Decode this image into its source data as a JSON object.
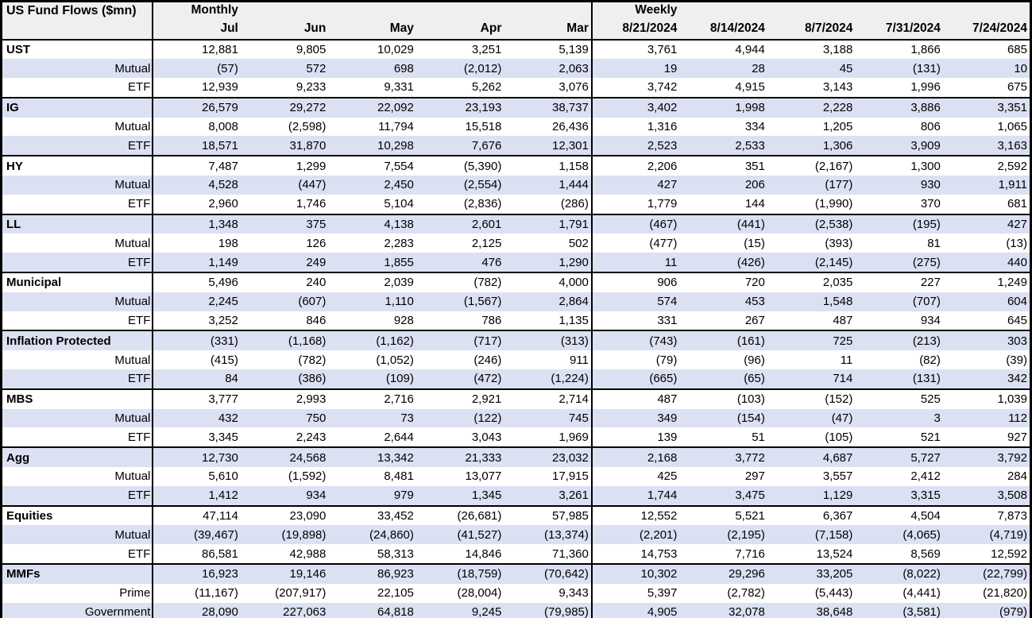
{
  "colors": {
    "alt_row_bg": "#dbe1f3",
    "header_bg": "#efefef",
    "border": "#000000",
    "text": "#000000",
    "row_bg": "#ffffff"
  },
  "chart_data": {
    "type": "table",
    "title": "US Fund Flows ($mn)",
    "sections": [
      {
        "label": "Monthly",
        "columns": [
          "Jul",
          "Jun",
          "May",
          "Apr",
          "Mar"
        ]
      },
      {
        "label": "Weekly",
        "columns": [
          "8/21/2024",
          "8/14/2024",
          "8/7/2024",
          "7/31/2024",
          "7/24/2024"
        ]
      }
    ],
    "groups": [
      {
        "rows": [
          {
            "label": "UST",
            "category": true,
            "monthly": [
              "12,881",
              "9,805",
              "10,029",
              "3,251",
              "5,139"
            ],
            "weekly": [
              "3,761",
              "4,944",
              "3,188",
              "1,866",
              "685"
            ]
          },
          {
            "label": "Mutual",
            "category": false,
            "monthly": [
              "(57)",
              "572",
              "698",
              "(2,012)",
              "2,063"
            ],
            "weekly": [
              "19",
              "28",
              "45",
              "(131)",
              "10"
            ]
          },
          {
            "label": "ETF",
            "category": false,
            "monthly": [
              "12,939",
              "9,233",
              "9,331",
              "5,262",
              "3,076"
            ],
            "weekly": [
              "3,742",
              "4,915",
              "3,143",
              "1,996",
              "675"
            ]
          }
        ]
      },
      {
        "rows": [
          {
            "label": "IG",
            "category": true,
            "monthly": [
              "26,579",
              "29,272",
              "22,092",
              "23,193",
              "38,737"
            ],
            "weekly": [
              "3,402",
              "1,998",
              "2,228",
              "3,886",
              "3,351"
            ]
          },
          {
            "label": "Mutual",
            "category": false,
            "monthly": [
              "8,008",
              "(2,598)",
              "11,794",
              "15,518",
              "26,436"
            ],
            "weekly": [
              "1,316",
              "334",
              "1,205",
              "806",
              "1,065"
            ]
          },
          {
            "label": "ETF",
            "category": false,
            "monthly": [
              "18,571",
              "31,870",
              "10,298",
              "7,676",
              "12,301"
            ],
            "weekly": [
              "2,523",
              "2,533",
              "1,306",
              "3,909",
              "3,163"
            ]
          }
        ]
      },
      {
        "rows": [
          {
            "label": "HY",
            "category": true,
            "monthly": [
              "7,487",
              "1,299",
              "7,554",
              "(5,390)",
              "1,158"
            ],
            "weekly": [
              "2,206",
              "351",
              "(2,167)",
              "1,300",
              "2,592"
            ]
          },
          {
            "label": "Mutual",
            "category": false,
            "monthly": [
              "4,528",
              "(447)",
              "2,450",
              "(2,554)",
              "1,444"
            ],
            "weekly": [
              "427",
              "206",
              "(177)",
              "930",
              "1,911"
            ]
          },
          {
            "label": "ETF",
            "category": false,
            "monthly": [
              "2,960",
              "1,746",
              "5,104",
              "(2,836)",
              "(286)"
            ],
            "weekly": [
              "1,779",
              "144",
              "(1,990)",
              "370",
              "681"
            ]
          }
        ]
      },
      {
        "rows": [
          {
            "label": "LL",
            "category": true,
            "monthly": [
              "1,348",
              "375",
              "4,138",
              "2,601",
              "1,791"
            ],
            "weekly": [
              "(467)",
              "(441)",
              "(2,538)",
              "(195)",
              "427"
            ]
          },
          {
            "label": "Mutual",
            "category": false,
            "monthly": [
              "198",
              "126",
              "2,283",
              "2,125",
              "502"
            ],
            "weekly": [
              "(477)",
              "(15)",
              "(393)",
              "81",
              "(13)"
            ]
          },
          {
            "label": "ETF",
            "category": false,
            "monthly": [
              "1,149",
              "249",
              "1,855",
              "476",
              "1,290"
            ],
            "weekly": [
              "11",
              "(426)",
              "(2,145)",
              "(275)",
              "440"
            ]
          }
        ]
      },
      {
        "rows": [
          {
            "label": "Municipal",
            "category": true,
            "monthly": [
              "5,496",
              "240",
              "2,039",
              "(782)",
              "4,000"
            ],
            "weekly": [
              "906",
              "720",
              "2,035",
              "227",
              "1,249"
            ]
          },
          {
            "label": "Mutual",
            "category": false,
            "monthly": [
              "2,245",
              "(607)",
              "1,110",
              "(1,567)",
              "2,864"
            ],
            "weekly": [
              "574",
              "453",
              "1,548",
              "(707)",
              "604"
            ]
          },
          {
            "label": "ETF",
            "category": false,
            "monthly": [
              "3,252",
              "846",
              "928",
              "786",
              "1,135"
            ],
            "weekly": [
              "331",
              "267",
              "487",
              "934",
              "645"
            ]
          }
        ]
      },
      {
        "rows": [
          {
            "label": "Inflation Protected",
            "category": true,
            "monthly": [
              "(331)",
              "(1,168)",
              "(1,162)",
              "(717)",
              "(313)"
            ],
            "weekly": [
              "(743)",
              "(161)",
              "725",
              "(213)",
              "303"
            ]
          },
          {
            "label": "Mutual",
            "category": false,
            "monthly": [
              "(415)",
              "(782)",
              "(1,052)",
              "(246)",
              "911"
            ],
            "weekly": [
              "(79)",
              "(96)",
              "11",
              "(82)",
              "(39)"
            ]
          },
          {
            "label": "ETF",
            "category": false,
            "monthly": [
              "84",
              "(386)",
              "(109)",
              "(472)",
              "(1,224)"
            ],
            "weekly": [
              "(665)",
              "(65)",
              "714",
              "(131)",
              "342"
            ]
          }
        ]
      },
      {
        "rows": [
          {
            "label": "MBS",
            "category": true,
            "monthly": [
              "3,777",
              "2,993",
              "2,716",
              "2,921",
              "2,714"
            ],
            "weekly": [
              "487",
              "(103)",
              "(152)",
              "525",
              "1,039"
            ]
          },
          {
            "label": "Mutual",
            "category": false,
            "monthly": [
              "432",
              "750",
              "73",
              "(122)",
              "745"
            ],
            "weekly": [
              "349",
              "(154)",
              "(47)",
              "3",
              "112"
            ]
          },
          {
            "label": "ETF",
            "category": false,
            "monthly": [
              "3,345",
              "2,243",
              "2,644",
              "3,043",
              "1,969"
            ],
            "weekly": [
              "139",
              "51",
              "(105)",
              "521",
              "927"
            ]
          }
        ]
      },
      {
        "rows": [
          {
            "label": "Agg",
            "category": true,
            "monthly": [
              "12,730",
              "24,568",
              "13,342",
              "21,333",
              "23,032"
            ],
            "weekly": [
              "2,168",
              "3,772",
              "4,687",
              "5,727",
              "3,792"
            ]
          },
          {
            "label": "Mutual",
            "category": false,
            "monthly": [
              "5,610",
              "(1,592)",
              "8,481",
              "13,077",
              "17,915"
            ],
            "weekly": [
              "425",
              "297",
              "3,557",
              "2,412",
              "284"
            ]
          },
          {
            "label": "ETF",
            "category": false,
            "monthly": [
              "1,412",
              "934",
              "979",
              "1,345",
              "3,261"
            ],
            "weekly": [
              "1,744",
              "3,475",
              "1,129",
              "3,315",
              "3,508"
            ]
          }
        ]
      },
      {
        "rows": [
          {
            "label": "Equities",
            "category": true,
            "monthly": [
              "47,114",
              "23,090",
              "33,452",
              "(26,681)",
              "57,985"
            ],
            "weekly": [
              "12,552",
              "5,521",
              "6,367",
              "4,504",
              "7,873"
            ]
          },
          {
            "label": "Mutual",
            "category": false,
            "monthly": [
              "(39,467)",
              "(19,898)",
              "(24,860)",
              "(41,527)",
              "(13,374)"
            ],
            "weekly": [
              "(2,201)",
              "(2,195)",
              "(7,158)",
              "(4,065)",
              "(4,719)"
            ]
          },
          {
            "label": "ETF",
            "category": false,
            "monthly": [
              "86,581",
              "42,988",
              "58,313",
              "14,846",
              "71,360"
            ],
            "weekly": [
              "14,753",
              "7,716",
              "13,524",
              "8,569",
              "12,592"
            ]
          }
        ]
      },
      {
        "rows": [
          {
            "label": "MMFs",
            "category": true,
            "monthly": [
              "16,923",
              "19,146",
              "86,923",
              "(18,759)",
              "(70,642)"
            ],
            "weekly": [
              "10,302",
              "29,296",
              "33,205",
              "(8,022)",
              "(22,799)"
            ]
          },
          {
            "label": "Prime",
            "category": false,
            "monthly": [
              "(11,167)",
              "(207,917)",
              "22,105",
              "(28,004)",
              "9,343"
            ],
            "weekly": [
              "5,397",
              "(2,782)",
              "(5,443)",
              "(4,441)",
              "(21,820)"
            ]
          },
          {
            "label": "Government",
            "category": false,
            "monthly": [
              "28,090",
              "227,063",
              "64,818",
              "9,245",
              "(79,985)"
            ],
            "weekly": [
              "4,905",
              "32,078",
              "38,648",
              "(3,581)",
              "(979)"
            ]
          }
        ]
      }
    ]
  }
}
